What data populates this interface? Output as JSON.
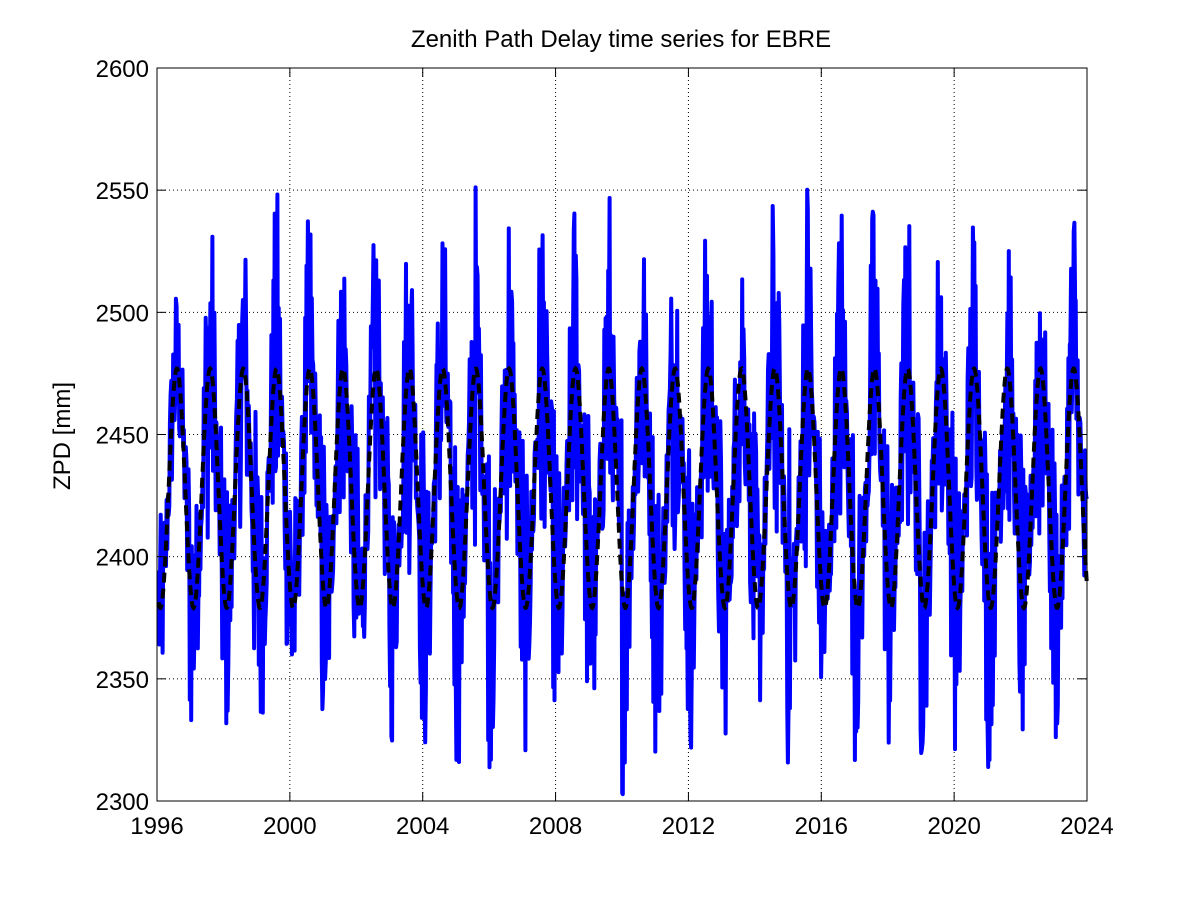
{
  "chart_data": {
    "type": "line",
    "title": "Zenith Path Delay time series for EBRE",
    "xlabel": "",
    "ylabel": "ZPD [mm]",
    "xlim": [
      1996,
      2024
    ],
    "ylim": [
      2300,
      2600
    ],
    "xticks": [
      1996,
      2000,
      2004,
      2008,
      2012,
      2016,
      2020,
      2024
    ],
    "yticks": [
      2300,
      2350,
      2400,
      2450,
      2500,
      2550,
      2600
    ],
    "x_tick_labels": [
      "1996",
      "2000",
      "2004",
      "2008",
      "2012",
      "2016",
      "2020",
      "2024"
    ],
    "y_tick_labels": [
      "2300",
      "2350",
      "2400",
      "2450",
      "2500",
      "2550",
      "2600"
    ],
    "grid": true,
    "legend": "none",
    "series": [
      {
        "style": "solid",
        "color": "#0000ff",
        "description_values": {
          "seasonal_period_years": 1,
          "typical_range": [
            2310,
            2570
          ],
          "x": [
            1996.0,
            1996.2,
            1996.5,
            1996.8,
            1997.0,
            1997.3,
            1997.6,
            1997.8,
            1998.0,
            1998.3,
            1998.6,
            1998.8,
            1999.0,
            1999.3,
            1999.6,
            1999.8,
            2000.0,
            2000.3,
            2000.6,
            2000.8,
            2001.0,
            2001.3,
            2001.6,
            2001.8,
            2002.0,
            2002.3,
            2002.6,
            2002.8,
            2003.0,
            2003.3,
            2003.6,
            2003.8,
            2004.0,
            2004.3,
            2004.6,
            2004.8,
            2005.0,
            2005.3,
            2005.6,
            2005.8,
            2006.0,
            2006.3,
            2006.6,
            2006.8,
            2007.0,
            2007.3,
            2007.6,
            2007.8,
            2008.0,
            2008.3,
            2008.6,
            2008.8,
            2009.0,
            2009.3,
            2009.6,
            2009.8,
            2010.0,
            2010.3,
            2010.6,
            2010.8,
            2011.0,
            2011.3,
            2011.6,
            2011.8,
            2012.0,
            2012.3,
            2012.6,
            2012.8,
            2013.0,
            2013.3,
            2013.6,
            2013.8,
            2014.0,
            2014.3,
            2014.6,
            2014.8,
            2015.0,
            2015.3,
            2015.6,
            2015.8,
            2016.0,
            2016.3,
            2016.6,
            2016.8,
            2017.0,
            2017.3,
            2017.6,
            2017.8,
            2018.0,
            2018.3,
            2018.6,
            2018.8,
            2019.0,
            2019.3,
            2019.6,
            2019.8,
            2020.0,
            2020.3,
            2020.6,
            2020.8,
            2021.0,
            2021.3,
            2021.6,
            2021.8,
            2022.0,
            2022.3,
            2022.6,
            2022.8,
            2023.0,
            2023.3,
            2023.6,
            2023.8,
            2024.0
          ],
          "y_peaks_approx": [
            2380,
            2400,
            2465,
            2440,
            2340,
            2420,
            2548,
            2440,
            2335,
            2410,
            2540,
            2420,
            2320,
            2400,
            2548,
            2420,
            2320,
            2420,
            2535,
            2420,
            2320,
            2420,
            2530,
            2420,
            2330,
            2420,
            2533,
            2420,
            2330,
            2430,
            2553,
            2420,
            2320,
            2420,
            2550,
            2420,
            2310,
            2420,
            2545,
            2420,
            2320,
            2420,
            2550,
            2420,
            2320,
            2420,
            2553,
            2420,
            2315,
            2420,
            2550,
            2420,
            2315,
            2420,
            2557,
            2420,
            2302,
            2420,
            2553,
            2420,
            2320,
            2420,
            2540,
            2420,
            2325,
            2420,
            2558,
            2420,
            2325,
            2420,
            2540,
            2420,
            2330,
            2420,
            2563,
            2420,
            2315,
            2420,
            2570,
            2420,
            2340,
            2420,
            2545,
            2420,
            2330,
            2420,
            2553,
            2420,
            2320,
            2420,
            2545,
            2420,
            2320,
            2420,
            2545,
            2420,
            2320,
            2420,
            2540,
            2420,
            2320,
            2420,
            2555,
            2420,
            2330,
            2420,
            2560,
            2420,
            2330,
            2420,
            2550,
            2420,
            2345
          ]
        }
      },
      {
        "style": "dashed",
        "color": "#000000",
        "description_values": {
          "model": "annual sinusoid",
          "mean": 2428,
          "amplitude": 49,
          "peak_value": 2478,
          "trough_value": 2378
        }
      }
    ]
  }
}
